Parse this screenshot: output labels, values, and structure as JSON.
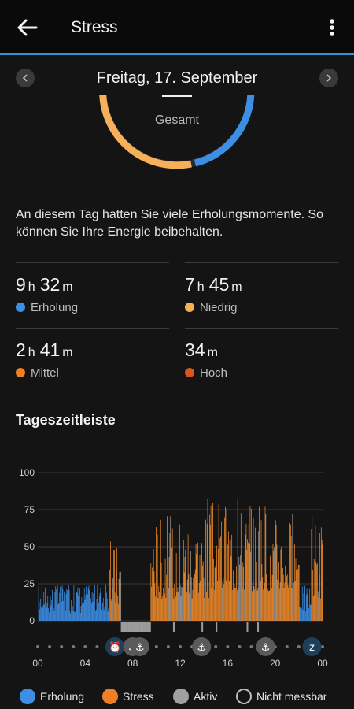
{
  "app": {
    "title": "Stress"
  },
  "date_nav": {
    "label": "Freitag, 17. September"
  },
  "ring": {
    "label": "Gesamt",
    "colors": {
      "rest": "#3d8fe6",
      "low": "#f7b05a",
      "track": "#2a2a2a"
    }
  },
  "summary_text": "An diesem Tag hatten Sie viele Erholungsmomente. So können Sie Ihre Energie beibehalten.",
  "stats": [
    {
      "h": "9",
      "h_unit": "h",
      "m": "32",
      "m_unit": "m",
      "label": "Erholung",
      "color": "#3d8fe6"
    },
    {
      "h": "7",
      "h_unit": "h",
      "m": "45",
      "m_unit": "m",
      "label": "Niedrig",
      "color": "#f7b05a"
    },
    {
      "h": "2",
      "h_unit": "h",
      "m": "41",
      "m_unit": "m",
      "label": "Mittel",
      "color": "#ef7f24"
    },
    {
      "h": "",
      "h_unit": "",
      "m": "34",
      "m_unit": "m",
      "label": "Hoch",
      "color": "#d9561d"
    }
  ],
  "timeline": {
    "title": "Tageszeitleiste"
  },
  "chart_data": {
    "type": "bar",
    "title": "",
    "y_ticks": [
      "100",
      "75",
      "50",
      "25",
      "0"
    ],
    "ylim": [
      0,
      100
    ],
    "x_tick_labels": [
      "00",
      "04",
      "08",
      "12",
      "16",
      "20",
      "00"
    ],
    "xlim_hours": [
      0,
      24
    ],
    "grid": true,
    "segments_approx": [
      {
        "from_hour": 0.0,
        "to_hour": 6.0,
        "type": "Erholung",
        "level_range": [
          5,
          25
        ]
      },
      {
        "from_hour": 6.0,
        "to_hour": 7.0,
        "type": "Stress",
        "level_range": [
          10,
          55
        ]
      },
      {
        "from_hour": 7.0,
        "to_hour": 9.5,
        "type": "Aktiv",
        "level_range": [
          0,
          0
        ]
      },
      {
        "from_hour": 9.5,
        "to_hour": 14.5,
        "type": "Stress",
        "level_range": [
          15,
          75
        ]
      },
      {
        "from_hour": 14.5,
        "to_hour": 19.5,
        "type": "Stress",
        "level_range": [
          20,
          82
        ]
      },
      {
        "from_hour": 19.5,
        "to_hour": 22.0,
        "type": "Stress",
        "level_range": [
          20,
          75
        ]
      },
      {
        "from_hour": 22.0,
        "to_hour": 23.0,
        "type": "Erholung",
        "level_range": [
          5,
          25
        ]
      },
      {
        "from_hour": 23.0,
        "to_hour": 24.0,
        "type": "Stress",
        "level_range": [
          15,
          75
        ]
      }
    ],
    "peak_level": 82,
    "markers": [
      {
        "hour": 6.5,
        "icon": "alarm-icon"
      },
      {
        "hour": 8.0,
        "icon": "walk-icon"
      },
      {
        "hour": 8.6,
        "icon": "walk-icon"
      },
      {
        "hour": 13.8,
        "icon": "walk-icon"
      },
      {
        "hour": 19.2,
        "icon": "walk-icon"
      },
      {
        "hour": 23.1,
        "icon": "sleep-icon"
      }
    ],
    "colors": {
      "Erholung": "#3d8fe6",
      "Stress": "#ef8a2a",
      "Aktiv": "#9c9c9c"
    }
  },
  "legend": [
    {
      "label": "Erholung",
      "color": "#3d8fe6",
      "outline": false
    },
    {
      "label": "Stress",
      "color": "#ef7f24",
      "outline": false
    },
    {
      "label": "Aktiv",
      "color": "#a0a0a0",
      "outline": false
    },
    {
      "label": "Nicht messbar",
      "color": "#141414",
      "outline": true
    }
  ]
}
